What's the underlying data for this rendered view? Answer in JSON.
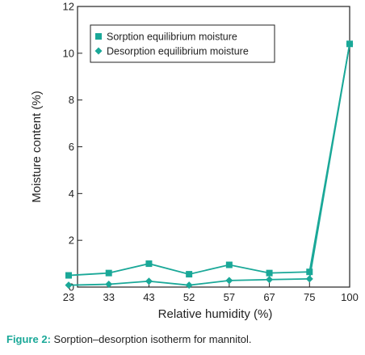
{
  "chart_data": {
    "type": "line",
    "xlabel": "Relative humidity (%)",
    "ylabel": "Moisture content (%)",
    "categories": [
      "23",
      "33",
      "43",
      "52",
      "57",
      "67",
      "75",
      "100"
    ],
    "ylim": [
      0,
      12
    ],
    "yticks": [
      "0",
      "2",
      "4",
      "6",
      "8",
      "10",
      "12"
    ],
    "grid": false,
    "legend_position": "top-center",
    "series": [
      {
        "name": "Sorption equilibrium moisture",
        "marker": "square",
        "color": "#1aa898",
        "values": [
          0.5,
          0.6,
          1.0,
          0.55,
          0.95,
          0.6,
          0.65,
          10.4
        ]
      },
      {
        "name": "Desorption equilibrium moisture",
        "marker": "diamond",
        "color": "#1aa898",
        "values": [
          0.08,
          0.12,
          0.25,
          0.08,
          0.28,
          0.32,
          0.35,
          10.4
        ]
      }
    ]
  },
  "caption": {
    "label": "Figure 2:",
    "text": "Sorption–desorption isotherm for mannitol."
  }
}
